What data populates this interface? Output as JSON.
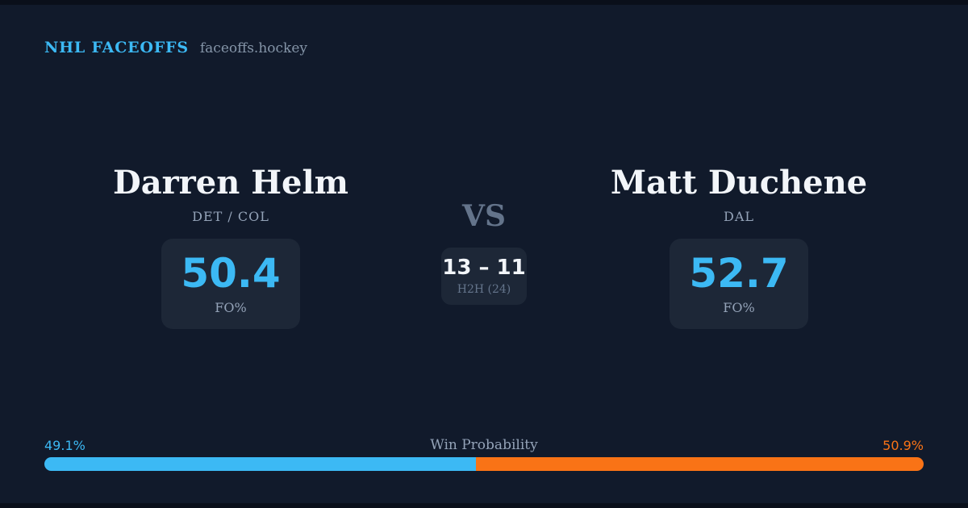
{
  "header": {
    "brand": "NHL FACEOFFS",
    "domain": "faceoffs.hockey"
  },
  "players": {
    "left": {
      "name": "Darren Helm",
      "teams": "DET / COL",
      "fo_value": "50.4",
      "fo_label": "FO%"
    },
    "right": {
      "name": "Matt Duchene",
      "teams": "DAL",
      "fo_value": "52.7",
      "fo_label": "FO%"
    }
  },
  "center": {
    "vs": "VS",
    "h2h_score": "13 – 11",
    "h2h_label": "H2H (24)"
  },
  "win_probability": {
    "title": "Win Probability",
    "left_label": "49.1%",
    "right_label": "50.9%",
    "left_pct": 49.1,
    "right_pct": 50.9
  },
  "colors": {
    "background": "#111a2b",
    "card": "#1d2737",
    "blue": "#3cb9f4",
    "orange": "#f97316",
    "white": "#f2f5f9",
    "muted": "#94a3b8",
    "faint": "#64748b"
  }
}
